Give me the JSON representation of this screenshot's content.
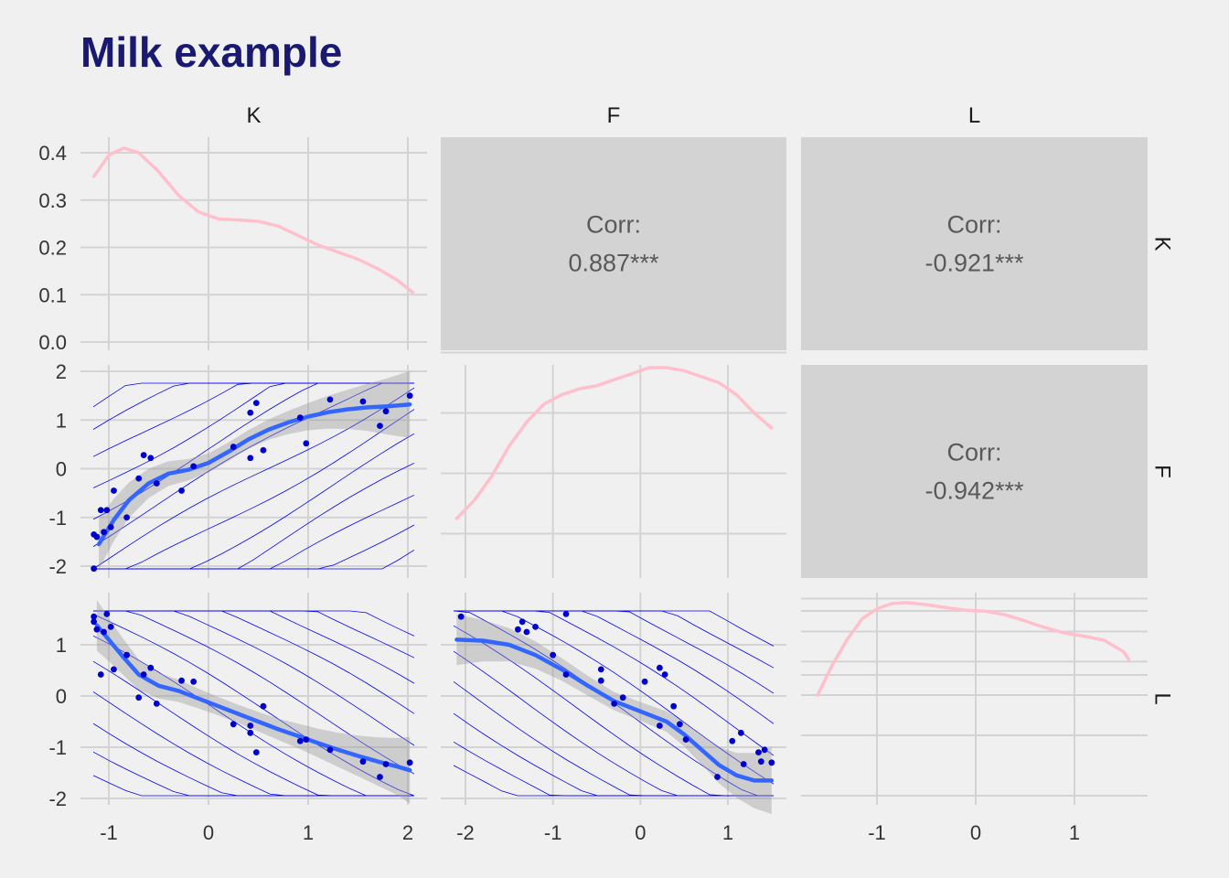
{
  "title": "Milk example",
  "colors": {
    "title": "#191970",
    "background": "#f0f0f0",
    "density": "#ffc0cb",
    "smooth": "#3366ff",
    "points": "#0000cc",
    "contour": "#0000ff",
    "corr_panel": "#d3d3d3",
    "grid": "#d3d3d3"
  },
  "chart_data": {
    "type": "scatterplot-matrix",
    "variables": [
      "K",
      "F",
      "L"
    ],
    "column_strips": [
      "K",
      "F",
      "L"
    ],
    "row_strips": [
      "K",
      "F",
      "L"
    ],
    "axes": {
      "K": {
        "ticks": [
          -1,
          0,
          1,
          2
        ],
        "tick_labels": [
          "-1",
          "0",
          "1",
          "2"
        ]
      },
      "F": {
        "ticks": [
          -2,
          -1,
          0,
          1
        ],
        "tick_labels": [
          "-2",
          "-1",
          "0",
          "1"
        ]
      },
      "L": {
        "ticks": [
          -1,
          0,
          1
        ],
        "tick_labels": [
          "-1",
          "0",
          "1"
        ]
      },
      "density_K": {
        "ticks": [
          0.0,
          0.1,
          0.2,
          0.3,
          0.4
        ],
        "tick_labels": [
          "0.0",
          "0.1",
          "0.2",
          "0.3",
          "0.4"
        ]
      },
      "row_F": {
        "ticks": [
          -2,
          -1,
          0,
          1,
          2
        ],
        "tick_labels": [
          "-2",
          "-1",
          "0",
          "1",
          "2"
        ]
      },
      "row_L": {
        "ticks": [
          -2,
          -1,
          0,
          1
        ],
        "tick_labels": [
          "-2",
          "-1",
          "0",
          "1"
        ]
      }
    },
    "correlations": [
      {
        "pair": "K-F",
        "label": "Corr:",
        "value": "0.887***"
      },
      {
        "pair": "K-L",
        "label": "Corr:",
        "value": "-0.921***"
      },
      {
        "pair": "F-L",
        "label": "Corr:",
        "value": "-0.942***"
      }
    ],
    "densities": {
      "K": {
        "x": [
          -1.15,
          -1.0,
          -0.85,
          -0.7,
          -0.5,
          -0.3,
          -0.1,
          0.1,
          0.3,
          0.5,
          0.7,
          0.9,
          1.1,
          1.3,
          1.5,
          1.7,
          1.9,
          2.05
        ],
        "y": [
          0.35,
          0.395,
          0.41,
          0.4,
          0.36,
          0.31,
          0.275,
          0.26,
          0.258,
          0.255,
          0.245,
          0.225,
          0.205,
          0.19,
          0.175,
          0.155,
          0.13,
          0.105
        ]
      },
      "F": {
        "x": [
          -2.1,
          -1.9,
          -1.7,
          -1.5,
          -1.3,
          -1.1,
          -0.9,
          -0.7,
          -0.5,
          -0.3,
          -0.1,
          0.1,
          0.3,
          0.5,
          0.7,
          0.9,
          1.1,
          1.3,
          1.5
        ],
        "y": [
          0.05,
          0.08,
          0.12,
          0.17,
          0.21,
          0.24,
          0.255,
          0.265,
          0.27,
          0.28,
          0.29,
          0.3,
          0.3,
          0.295,
          0.285,
          0.275,
          0.255,
          0.225,
          0.2
        ]
      },
      "L": {
        "x": [
          -1.6,
          -1.45,
          -1.3,
          -1.15,
          -1.0,
          -0.85,
          -0.7,
          -0.5,
          -0.3,
          -0.1,
          0.1,
          0.3,
          0.5,
          0.7,
          0.9,
          1.1,
          1.3,
          1.5,
          1.55
        ],
        "y": [
          0.0,
          0.06,
          0.11,
          0.15,
          0.17,
          0.18,
          0.182,
          0.178,
          0.172,
          0.167,
          0.165,
          0.158,
          0.146,
          0.133,
          0.122,
          0.116,
          0.108,
          0.085,
          0.07
        ]
      }
    },
    "points": [
      {
        "K": -1.15,
        "F": -2.05,
        "L": 1.55
      },
      {
        "K": -1.15,
        "F": -1.35,
        "L": 1.45
      },
      {
        "K": -1.12,
        "F": -1.4,
        "L": 1.3
      },
      {
        "K": -1.08,
        "F": -0.85,
        "L": 0.42
      },
      {
        "K": -1.05,
        "F": -1.3,
        "L": 1.25
      },
      {
        "K": -1.02,
        "F": -0.85,
        "L": 1.6
      },
      {
        "K": -0.98,
        "F": -1.2,
        "L": 1.35
      },
      {
        "K": -0.95,
        "F": -0.45,
        "L": 0.52
      },
      {
        "K": -0.82,
        "F": -1.0,
        "L": 0.8
      },
      {
        "K": -0.7,
        "F": -0.2,
        "L": -0.03
      },
      {
        "K": -0.65,
        "F": 0.28,
        "L": 0.42
      },
      {
        "K": -0.58,
        "F": 0.22,
        "L": 0.55
      },
      {
        "K": -0.52,
        "F": -0.3,
        "L": -0.15
      },
      {
        "K": -0.27,
        "F": -0.45,
        "L": 0.3
      },
      {
        "K": -0.15,
        "F": 0.05,
        "L": 0.28
      },
      {
        "K": 0.25,
        "F": 0.45,
        "L": -0.55
      },
      {
        "K": 0.42,
        "F": 0.22,
        "L": -0.58
      },
      {
        "K": 0.42,
        "F": 1.15,
        "L": -0.72
      },
      {
        "K": 0.48,
        "F": 1.35,
        "L": -1.1
      },
      {
        "K": 0.55,
        "F": 0.38,
        "L": -0.2
      },
      {
        "K": 0.92,
        "F": 1.05,
        "L": -0.88
      },
      {
        "K": 0.98,
        "F": 0.52,
        "L": -0.85
      },
      {
        "K": 1.22,
        "F": 1.42,
        "L": -1.05
      },
      {
        "K": 1.55,
        "F": 1.38,
        "L": -1.28
      },
      {
        "K": 1.72,
        "F": 0.88,
        "L": -1.58
      },
      {
        "K": 1.78,
        "F": 1.18,
        "L": -1.33
      },
      {
        "K": 2.02,
        "F": 1.5,
        "L": -1.3
      }
    ],
    "smooth": {
      "K_F": {
        "x": [
          -1.1,
          -0.95,
          -0.8,
          -0.6,
          -0.4,
          -0.2,
          0.0,
          0.2,
          0.4,
          0.6,
          0.8,
          1.0,
          1.2,
          1.4,
          1.6,
          1.8,
          2.02
        ],
        "y": [
          -1.55,
          -1.05,
          -0.65,
          -0.3,
          -0.1,
          -0.02,
          0.12,
          0.35,
          0.6,
          0.8,
          0.95,
          1.07,
          1.16,
          1.22,
          1.26,
          1.28,
          1.32
        ]
      },
      "K_L": {
        "x": [
          -1.12,
          -1.0,
          -0.85,
          -0.7,
          -0.5,
          -0.3,
          -0.1,
          0.1,
          0.3,
          0.5,
          0.7,
          0.9,
          1.1,
          1.3,
          1.5,
          1.7,
          1.9,
          2.02
        ],
        "y": [
          1.38,
          1.1,
          0.75,
          0.42,
          0.2,
          0.1,
          -0.05,
          -0.2,
          -0.35,
          -0.5,
          -0.65,
          -0.78,
          -0.92,
          -1.05,
          -1.17,
          -1.28,
          -1.38,
          -1.45
        ]
      },
      "F_L": {
        "x": [
          -2.1,
          -1.8,
          -1.5,
          -1.2,
          -0.9,
          -0.6,
          -0.3,
          0.0,
          0.3,
          0.5,
          0.7,
          0.9,
          1.1,
          1.3,
          1.5
        ],
        "y": [
          1.1,
          1.08,
          1.0,
          0.8,
          0.52,
          0.2,
          -0.1,
          -0.3,
          -0.5,
          -0.75,
          -1.05,
          -1.35,
          -1.55,
          -1.65,
          -1.65
        ]
      }
    }
  }
}
